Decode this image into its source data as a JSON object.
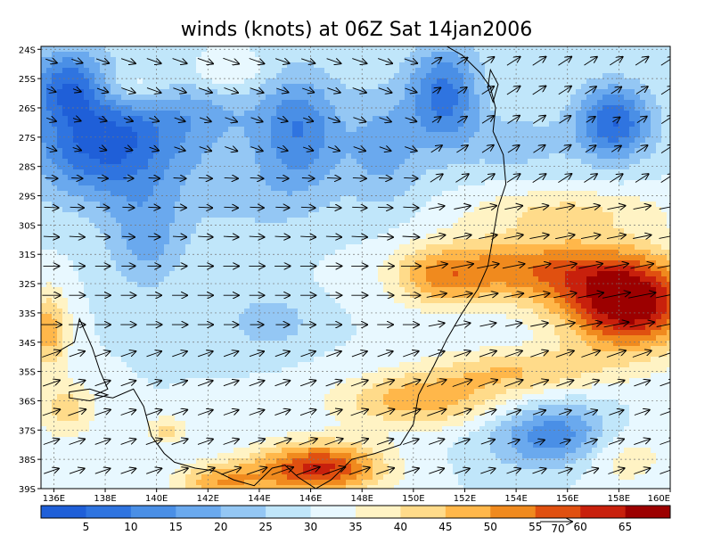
{
  "chart_data": {
    "type": "heatmap",
    "title": "winds (knots) at 06Z Sat 14jan2006",
    "xaxis": {
      "range": [
        135.5,
        160
      ],
      "ticks": [
        136,
        138,
        140,
        142,
        144,
        146,
        148,
        150,
        152,
        154,
        156,
        158,
        160
      ],
      "tick_labels": [
        "136E",
        "138E",
        "140E",
        "142E",
        "144E",
        "146E",
        "148E",
        "150E",
        "152E",
        "154E",
        "156E",
        "158E",
        "160E"
      ]
    },
    "yaxis": {
      "range": [
        -39,
        -23.9
      ],
      "ticks": [
        -24,
        -25,
        -26,
        -27,
        -28,
        -29,
        -30,
        -31,
        -32,
        -33,
        -34,
        -35,
        -36,
        -37,
        -38,
        -39
      ],
      "tick_labels": [
        "24S",
        "25S",
        "26S",
        "27S",
        "28S",
        "29S",
        "30S",
        "31S",
        "32S",
        "33S",
        "34S",
        "35S",
        "36S",
        "37S",
        "38S",
        "39S"
      ]
    },
    "grid": true,
    "colorbar": {
      "levels": [
        5,
        10,
        15,
        20,
        25,
        30,
        35,
        40,
        45,
        50,
        55,
        60,
        65
      ],
      "labels": [
        "5",
        "10",
        "15",
        "20",
        "25",
        "30",
        "35",
        "40",
        "45",
        "50",
        "55",
        "60",
        "65"
      ],
      "colors": [
        "#1f5fd8",
        "#2f74e0",
        "#4a8fe6",
        "#6aa9ee",
        "#94c7f4",
        "#c0e6fa",
        "#e8f8ff",
        "#fff3c4",
        "#ffdb8a",
        "#ffb74a",
        "#f08a1e",
        "#e05010",
        "#c8200c",
        "#9c0000"
      ]
    },
    "reference_vector_label": "70",
    "coastline": [
      [
        136.2,
        -34.3
      ],
      [
        136.8,
        -34.0
      ],
      [
        137.0,
        -33.2
      ],
      [
        137.5,
        -34.2
      ],
      [
        137.8,
        -35.0
      ],
      [
        138.1,
        -35.6
      ],
      [
        137.6,
        -35.8
      ],
      [
        138.3,
        -35.9
      ],
      [
        139.1,
        -35.6
      ],
      [
        139.5,
        -36.2
      ],
      [
        139.8,
        -37.2
      ],
      [
        140.3,
        -37.8
      ],
      [
        140.7,
        -38.1
      ],
      [
        141.5,
        -38.3
      ],
      [
        142.3,
        -38.4
      ],
      [
        143.0,
        -38.7
      ],
      [
        143.8,
        -38.9
      ],
      [
        144.5,
        -38.3
      ],
      [
        145.0,
        -38.2
      ],
      [
        145.5,
        -38.6
      ],
      [
        146.2,
        -39.0
      ],
      [
        146.8,
        -38.7
      ],
      [
        147.6,
        -38.0
      ],
      [
        148.5,
        -37.8
      ],
      [
        149.5,
        -37.5
      ],
      [
        150.0,
        -36.8
      ],
      [
        150.2,
        -35.8
      ],
      [
        150.8,
        -34.8
      ],
      [
        151.3,
        -33.9
      ],
      [
        151.9,
        -33.0
      ],
      [
        152.5,
        -32.2
      ],
      [
        152.9,
        -31.4
      ],
      [
        153.1,
        -30.4
      ],
      [
        153.3,
        -29.4
      ],
      [
        153.6,
        -28.6
      ],
      [
        153.5,
        -27.6
      ],
      [
        153.1,
        -26.8
      ],
      [
        153.2,
        -26.0
      ],
      [
        153.0,
        -25.3
      ],
      [
        152.6,
        -24.8
      ],
      [
        151.9,
        -24.2
      ],
      [
        151.3,
        -23.9
      ]
    ],
    "isolated_regions": [
      {
        "name": "kangaroo-island",
        "points": [
          [
            136.6,
            -35.7
          ],
          [
            137.4,
            -35.6
          ],
          [
            138.1,
            -35.8
          ],
          [
            137.4,
            -36.0
          ],
          [
            136.6,
            -35.9
          ]
        ]
      },
      {
        "name": "fraser-island",
        "points": [
          [
            153.0,
            -24.7
          ],
          [
            153.3,
            -25.2
          ],
          [
            153.1,
            -25.8
          ],
          [
            152.9,
            -25.3
          ]
        ]
      }
    ],
    "field": {
      "note": "wind speed (knots)",
      "base": 30,
      "features": [
        {
          "lon": 137.8,
          "lat": -27.4,
          "amp": -24,
          "sx": 2.8,
          "sy": 1.8
        },
        {
          "lon": 136.5,
          "lat": -25.2,
          "amp": -20,
          "sx": 1.5,
          "sy": 1.3
        },
        {
          "lon": 141.0,
          "lat": -26.0,
          "amp": -12,
          "sx": 3.5,
          "sy": 1.8
        },
        {
          "lon": 145.6,
          "lat": -26.8,
          "amp": -18,
          "sx": 1.6,
          "sy": 2.0
        },
        {
          "lon": 151.2,
          "lat": -25.6,
          "amp": -22,
          "sx": 1.4,
          "sy": 1.8
        },
        {
          "lon": 148.8,
          "lat": -27.4,
          "amp": -12,
          "sx": 1.5,
          "sy": 2.0
        },
        {
          "lon": 157.8,
          "lat": -26.5,
          "amp": -25,
          "sx": 1.5,
          "sy": 1.3
        },
        {
          "lon": 154.0,
          "lat": -27.2,
          "amp": -8,
          "sx": 2.0,
          "sy": 1.0
        },
        {
          "lon": 139.6,
          "lat": -30.4,
          "amp": -12,
          "sx": 1.5,
          "sy": 1.8
        },
        {
          "lon": 144.4,
          "lat": -33.3,
          "amp": -9,
          "sx": 1.6,
          "sy": 0.9
        },
        {
          "lon": 143.5,
          "lat": -29.0,
          "amp": -6,
          "sx": 3.0,
          "sy": 1.5
        },
        {
          "lon": 155.6,
          "lat": -37.2,
          "amp": -20,
          "sx": 2.4,
          "sy": 1.1
        },
        {
          "lon": 158.4,
          "lat": -32.7,
          "amp": 40,
          "sx": 2.6,
          "sy": 1.6
        },
        {
          "lon": 154.5,
          "lat": -31.5,
          "amp": 22,
          "sx": 4.0,
          "sy": 1.2
        },
        {
          "lon": 151.0,
          "lat": -31.8,
          "amp": 14,
          "sx": 1.8,
          "sy": 1.0
        },
        {
          "lon": 150.2,
          "lat": -36.0,
          "amp": 18,
          "sx": 3.2,
          "sy": 0.9
        },
        {
          "lon": 154.0,
          "lat": -35.0,
          "amp": 14,
          "sx": 3.5,
          "sy": 0.8
        },
        {
          "lon": 146.3,
          "lat": -38.3,
          "amp": 32,
          "sx": 2.5,
          "sy": 0.9
        },
        {
          "lon": 142.5,
          "lat": -38.8,
          "amp": 18,
          "sx": 1.8,
          "sy": 0.7
        },
        {
          "lon": 135.8,
          "lat": -33.6,
          "amp": 18,
          "sx": 0.8,
          "sy": 1.4
        },
        {
          "lon": 136.5,
          "lat": -36.3,
          "amp": 12,
          "sx": 1.2,
          "sy": 1.0
        },
        {
          "lon": 140.4,
          "lat": -37.0,
          "amp": 12,
          "sx": 0.8,
          "sy": 0.5
        },
        {
          "lon": 142.6,
          "lat": -24.8,
          "amp": 10,
          "sx": 1.8,
          "sy": 0.8
        },
        {
          "lon": 139.2,
          "lat": -25.3,
          "amp": 12,
          "sx": 1.5,
          "sy": 0.8
        },
        {
          "lon": 158.0,
          "lat": -37.8,
          "amp": 10,
          "sx": 2.0,
          "sy": 1.2
        },
        {
          "lon": 156.0,
          "lat": -29.5,
          "amp": 10,
          "sx": 4.0,
          "sy": 0.8
        }
      ]
    },
    "vectors": {
      "regions": [
        {
          "lon_min": 135.5,
          "lon_max": 150.0,
          "lat_min": -28.0,
          "lat_max": -23.9,
          "dir": [
            1.0,
            -0.35
          ]
        },
        {
          "lon_min": 150.0,
          "lon_max": 160.0,
          "lat_min": -29.0,
          "lat_max": -23.9,
          "dir": [
            0.85,
            0.55
          ]
        },
        {
          "lon_min": 135.5,
          "lon_max": 150.0,
          "lat_min": -31.0,
          "lat_max": -28.0,
          "dir": [
            1.0,
            -0.05
          ]
        },
        {
          "lon_min": 150.0,
          "lon_max": 160.0,
          "lat_min": -33.5,
          "lat_max": -29.0,
          "dir": [
            1.0,
            0.2
          ]
        },
        {
          "lon_min": 135.5,
          "lon_max": 150.0,
          "lat_min": -34.0,
          "lat_max": -31.0,
          "dir": [
            1.0,
            0.0
          ]
        },
        {
          "lon_min": 135.5,
          "lon_max": 160.0,
          "lat_min": -39.0,
          "lat_max": -34.0,
          "dir": [
            1.0,
            0.35
          ]
        },
        {
          "lon_min": 150.0,
          "lon_max": 160.0,
          "lat_min": -34.0,
          "lat_max": -33.5,
          "dir": [
            1.0,
            0.1
          ]
        }
      ]
    }
  }
}
